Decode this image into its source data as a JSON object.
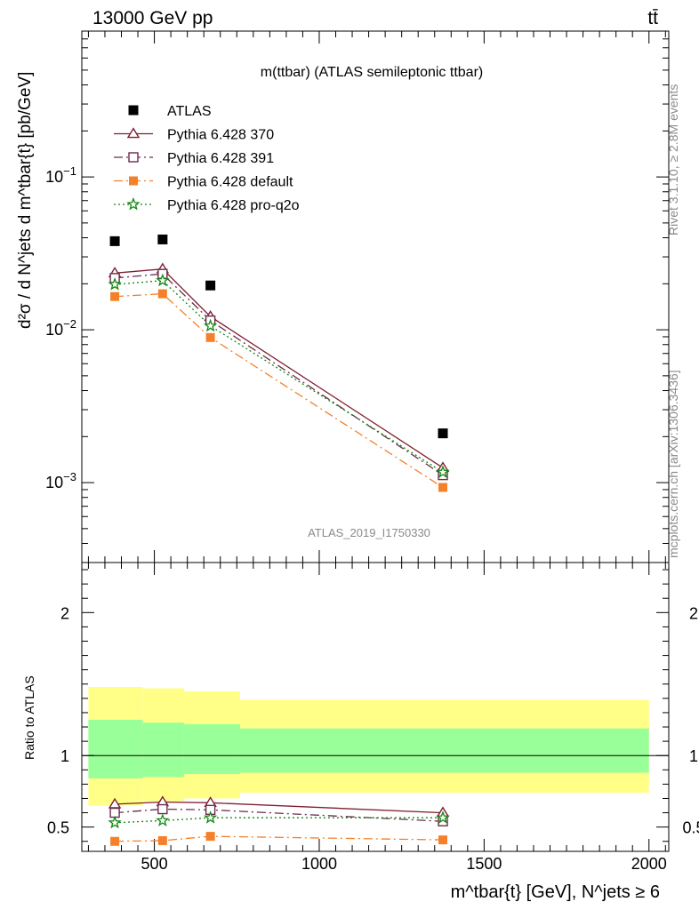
{
  "header": {
    "left": "13000 GeV pp",
    "right": "tt̄"
  },
  "side_labels": {
    "rivet": "Rivet 3.1.10, ≥ 2.8M events",
    "mcplots": "mcplots.cern.ch [arXiv:1306.3436]"
  },
  "chart_data": [
    {
      "type": "scatter",
      "title": "m(ttbar) (ATLAS semileptonic ttbar)",
      "analysis_tag": "ATLAS_2019_I1750330",
      "ylabel": "d²σ / d N^jets d m^tbar{t} [pb/GeV]",
      "xlabel": "m^tbar{t} [GeV], N^jets ≥ 6",
      "yscale": "log",
      "ylim": [
        0.0003,
        0.9
      ],
      "xlim": [
        280,
        2060
      ],
      "y_tick_labels": [
        "10^-3",
        "10^-2",
        "10^-1"
      ],
      "x_tick_labels": [
        "500",
        "1000",
        "1500",
        "2000"
      ],
      "legend_position": "top-left",
      "x": [
        380,
        525,
        670,
        1375
      ],
      "series": [
        {
          "name": "ATLAS",
          "style": "data",
          "color": "#000000",
          "marker": "square-filled",
          "values": [
            0.038,
            0.039,
            0.0195,
            0.0021
          ]
        },
        {
          "name": "Pythia 6.428 370",
          "style": "solid",
          "color": "#7f1f2f",
          "marker": "triangle-open",
          "values": [
            0.0235,
            0.025,
            0.0122,
            0.00125
          ]
        },
        {
          "name": "Pythia 6.428 391",
          "style": "dashdot",
          "color": "#6b2c50",
          "marker": "square-open",
          "values": [
            0.0218,
            0.0232,
            0.0115,
            0.00112
          ]
        },
        {
          "name": "Pythia 6.428 default",
          "style": "dashdot",
          "color": "#f5802a",
          "marker": "square-filled",
          "values": [
            0.0165,
            0.0172,
            0.0089,
            0.00093
          ]
        },
        {
          "name": "Pythia 6.428 pro-q2o",
          "style": "dotted",
          "color": "#118811",
          "marker": "star-open",
          "values": [
            0.0198,
            0.021,
            0.0106,
            0.00117
          ]
        }
      ]
    },
    {
      "type": "scatter",
      "ylabel": "Ratio to ATLAS",
      "ylim": [
        0.33,
        2.35
      ],
      "xlim": [
        280,
        2060
      ],
      "y_tick_labels": [
        "0.5",
        "1",
        "2"
      ],
      "x": [
        380,
        525,
        670,
        1375
      ],
      "uncertainty_bands": {
        "bin_edges": [
          300,
          465,
          590,
          760,
          2000
        ],
        "outer_color": "#ffff88",
        "inner_color": "#99ff99",
        "outer_low": [
          0.65,
          0.68,
          0.7,
          0.74
        ],
        "outer_high": [
          1.48,
          1.47,
          1.45,
          1.39
        ],
        "inner_low": [
          0.84,
          0.85,
          0.87,
          0.88
        ],
        "inner_high": [
          1.25,
          1.23,
          1.22,
          1.19
        ]
      },
      "series": [
        {
          "name": "Pythia 6.428 370",
          "color": "#7f1f2f",
          "values": [
            0.66,
            0.675,
            0.67,
            0.6
          ]
        },
        {
          "name": "Pythia 6.428 391",
          "color": "#6b2c50",
          "values": [
            0.6,
            0.625,
            0.62,
            0.54
          ]
        },
        {
          "name": "Pythia 6.428 default",
          "color": "#f5802a",
          "values": [
            0.4,
            0.405,
            0.435,
            0.41
          ]
        },
        {
          "name": "Pythia 6.428 pro-q2o",
          "color": "#118811",
          "values": [
            0.53,
            0.545,
            0.565,
            0.565
          ]
        }
      ]
    }
  ]
}
